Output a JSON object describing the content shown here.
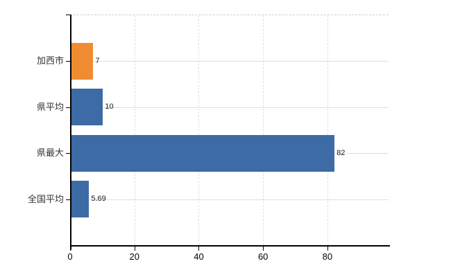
{
  "chart_data": {
    "type": "bar",
    "orientation": "horizontal",
    "title": "",
    "xlabel": "",
    "ylabel": "",
    "categories": [
      "加西市",
      "県平均",
      "県最大",
      "全国平均"
    ],
    "values": [
      7,
      10,
      82,
      5.69
    ],
    "value_labels": [
      "7",
      "10",
      "82",
      "5.69"
    ],
    "bar_colors": [
      "#ef8c31",
      "#3c6ba6",
      "#3c6ba6",
      "#3c6ba6"
    ],
    "x_ticks": [
      0,
      20,
      40,
      60,
      80
    ],
    "x_tick_labels": [
      "0",
      "20",
      "40",
      "60",
      "80"
    ],
    "xlim": [
      0,
      99
    ],
    "grid": true,
    "legend": "none",
    "background_color": "#ffffff",
    "axis_color": "#000000",
    "horizontal_gridline_color": "#d9e1d9",
    "vertical_gridline_color": "#dedede",
    "top_border_style": "dashed"
  }
}
